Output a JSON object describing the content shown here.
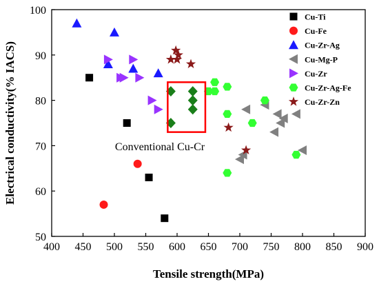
{
  "chart_data": {
    "type": "scatter",
    "xlabel": "Tensile strength(MPa)",
    "ylabel": "Electrical conductivity(% IACS)",
    "xlim": [
      400,
      900
    ],
    "ylim": [
      50,
      100
    ],
    "xticks": [
      400,
      450,
      500,
      550,
      600,
      650,
      700,
      750,
      800,
      850,
      900
    ],
    "yticks": [
      50,
      60,
      70,
      80,
      90,
      100
    ],
    "grid": false,
    "legend_position": "top-right",
    "series": [
      {
        "name": "Cu-Ti",
        "marker": "square",
        "color": "#000000",
        "points": [
          [
            460,
            85
          ],
          [
            520,
            75
          ],
          [
            555,
            63
          ],
          [
            580,
            54
          ]
        ]
      },
      {
        "name": "Cu-Fe",
        "marker": "circle",
        "color": "#ff1a1a",
        "points": [
          [
            483,
            57
          ],
          [
            537,
            66
          ]
        ]
      },
      {
        "name": "Cu-Zr-Ag",
        "marker": "triangle-up",
        "color": "#1a1aff",
        "points": [
          [
            440,
            97
          ],
          [
            490,
            88
          ],
          [
            500,
            95
          ],
          [
            530,
            87
          ],
          [
            570,
            86
          ]
        ]
      },
      {
        "name": "Cu-Mg-P",
        "marker": "triangle-left",
        "color": "#808080",
        "points": [
          [
            710,
            78
          ],
          [
            740,
            79
          ],
          [
            755,
            73
          ],
          [
            760,
            77
          ],
          [
            765,
            75
          ],
          [
            770,
            76
          ],
          [
            790,
            77
          ],
          [
            800,
            69
          ],
          [
            700,
            67
          ],
          [
            705,
            68
          ]
        ]
      },
      {
        "name": "Cu-Zr",
        "marker": "triangle-right",
        "color": "#9933ff",
        "points": [
          [
            490,
            89
          ],
          [
            510,
            85
          ],
          [
            515,
            85
          ],
          [
            530,
            89
          ],
          [
            540,
            85
          ],
          [
            560,
            80
          ],
          [
            570,
            78
          ]
        ]
      },
      {
        "name": "Cu-Zr-Ag-Fe",
        "marker": "hexagon",
        "color": "#33ff33",
        "points": [
          [
            650,
            82
          ],
          [
            660,
            84
          ],
          [
            660,
            82
          ],
          [
            680,
            83
          ],
          [
            680,
            77
          ],
          [
            680,
            64
          ],
          [
            720,
            75
          ],
          [
            740,
            80
          ],
          [
            790,
            68
          ]
        ]
      },
      {
        "name": "Cu-Zr-Zn",
        "marker": "star",
        "color": "#8b1a1a",
        "points": [
          [
            590,
            89
          ],
          [
            598,
            91
          ],
          [
            602,
            90
          ],
          [
            600,
            89
          ],
          [
            622,
            88
          ],
          [
            682,
            74
          ],
          [
            710,
            69
          ]
        ]
      }
    ],
    "highlight_points": {
      "marker": "diamond",
      "color": "#1a7f1a",
      "points": [
        [
          590,
          82
        ],
        [
          590,
          75
        ],
        [
          625,
          82
        ],
        [
          625,
          80
        ],
        [
          625,
          78
        ]
      ]
    },
    "annotation": {
      "label": "Conventional Cu-Cr",
      "box": {
        "x_range": [
          585,
          645
        ],
        "y_range": [
          73,
          84
        ]
      },
      "box_color": "#ff0000"
    }
  }
}
